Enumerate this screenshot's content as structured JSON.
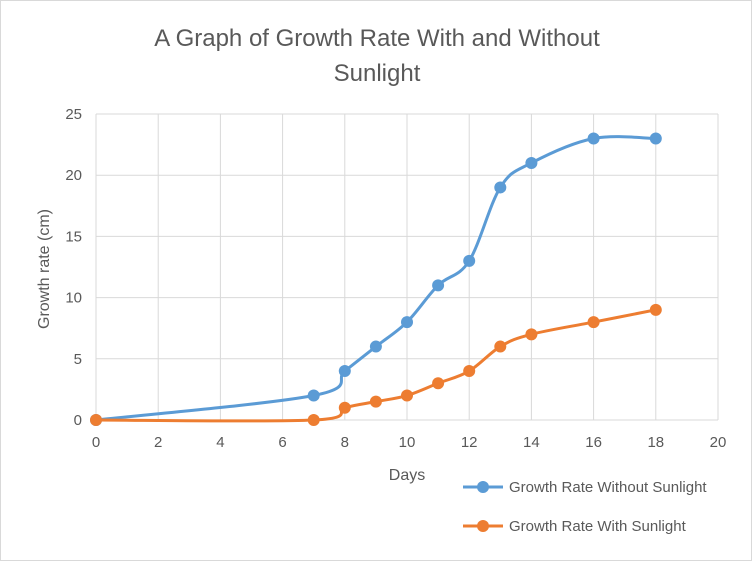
{
  "chart_data": {
    "type": "line",
    "title_lines": [
      "A Graph  of Growth Rate With and Without",
      "Sunlight"
    ],
    "xlabel": "Days",
    "ylabel": "Growth rate (cm)",
    "xlim": [
      0,
      20
    ],
    "ylim": [
      0,
      25
    ],
    "x_ticks": [
      0,
      2,
      4,
      6,
      8,
      10,
      12,
      14,
      16,
      18,
      20
    ],
    "y_ticks": [
      0,
      5,
      10,
      15,
      20,
      25
    ],
    "grid": true,
    "smooth": true,
    "legend_position": "bottom-right",
    "series": [
      {
        "name": "Growth Rate Without Sunlight",
        "color": "#5b9bd5",
        "x": [
          0,
          7,
          8,
          9,
          10,
          11,
          12,
          13,
          14,
          16,
          18
        ],
        "y": [
          0,
          2,
          4,
          6,
          8,
          11,
          13,
          19,
          21,
          23,
          23
        ]
      },
      {
        "name": "Growth Rate With Sunlight",
        "color": "#ed7d31",
        "x": [
          0,
          7,
          8,
          9,
          10,
          11,
          12,
          13,
          14,
          16,
          18
        ],
        "y": [
          0,
          0,
          1,
          1.5,
          2,
          3,
          4,
          6,
          7,
          8,
          9
        ]
      }
    ]
  }
}
